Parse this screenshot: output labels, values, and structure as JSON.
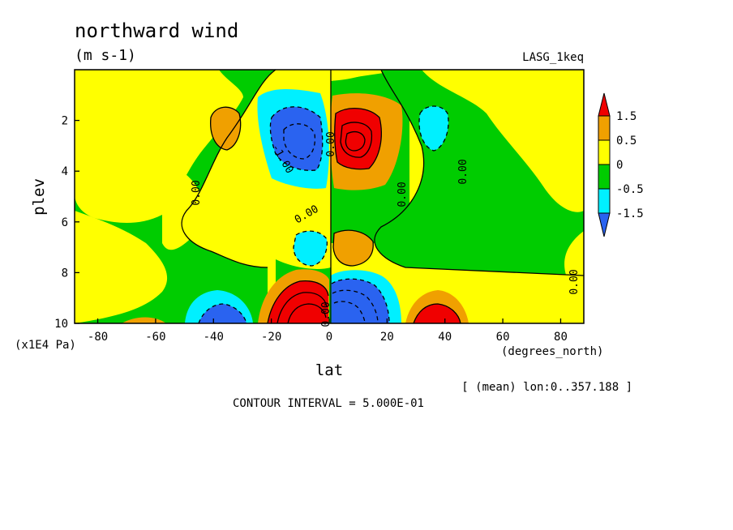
{
  "colors": {
    "lt_m1": "#2a63f0",
    "m1_m05": "#00f0ff",
    "m05_0": "#00cc00",
    "0_05": "#ffff00",
    "05_1": "#f0a000",
    "gt_1": "#f00000",
    "gt_15": "#ee0000"
  },
  "chart_data": {
    "type": "heatmap",
    "title": "northward wind",
    "units": "(m s-1)",
    "dataset": "LASG_1keq",
    "xlabel": "lat",
    "xunits": "(degrees_north)",
    "ylabel": "plev",
    "yunits": "(x1E4 Pa)",
    "xlim": [
      -88,
      88
    ],
    "ylim": [
      10,
      0
    ],
    "xticks": [
      "-80",
      "-60",
      "-40",
      "-20",
      "0",
      "20",
      "40",
      "60",
      "80"
    ],
    "yticks": [
      "2",
      "4",
      "6",
      "8",
      "10"
    ],
    "contour_interval_text": "CONTOUR INTERVAL = 5.000E-01",
    "mean_text": "[ (mean) lon:0..357.188 ]",
    "colorbar_labels": [
      "1.5",
      "0.5",
      "0",
      "-0.5",
      "-1.5"
    ],
    "contour_labels": [
      "0.00",
      "0.00",
      "-1.00",
      "0.00",
      "0.00",
      "0.00",
      "0.00",
      "0.00"
    ],
    "features": [
      {
        "lat": -5,
        "plev": 3.0,
        "value": -1.7
      },
      {
        "lat": 6,
        "plev": 3.0,
        "value": 1.7
      },
      {
        "lat": -40,
        "plev": 9.6,
        "value": -1.2
      },
      {
        "lat": -8,
        "plev": 9.4,
        "value": 2.0
      },
      {
        "lat": 7,
        "plev": 9.2,
        "value": -2.0
      },
      {
        "lat": 38,
        "plev": 9.8,
        "value": 1.7
      },
      {
        "lat": -35,
        "plev": 2.4,
        "value": 0.7
      },
      {
        "lat": 38,
        "plev": 2.2,
        "value": -0.7
      },
      {
        "lat": -8,
        "plev": 7.0,
        "value": -0.7
      },
      {
        "lat": 7,
        "plev": 7.0,
        "value": 0.7
      }
    ]
  }
}
